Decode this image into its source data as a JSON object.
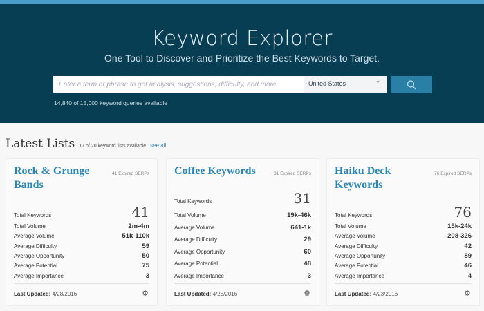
{
  "header": {
    "title": "Keyword Explorer",
    "subtitle": "One Tool to Discover and Prioritize the Best Keywords to Target.",
    "search_placeholder": "Enter a term or phrase to get analysis, suggestions, difficulty, and more",
    "country": "United States",
    "queries_available": "14,840 of 15,000 keyword queries available"
  },
  "latest": {
    "title": "Latest Lists",
    "count": "17 of 20 keyword lists available",
    "see_all": "see all"
  },
  "labels": [
    "Total Keywords",
    "Total Volume",
    "Average Volume",
    "Average Difficulty",
    "Average Opportunity",
    "Average Potential",
    "Average Importance"
  ],
  "last_updated_label": "Last Updated:",
  "cards": [
    {
      "title": "Rock & Grunge Bands",
      "expired": "41 Expired SERPs",
      "values": [
        "41",
        "2m-4m",
        "51k-110k",
        "59",
        "50",
        "75",
        "3"
      ],
      "updated": "4/28/2016"
    },
    {
      "title": "Coffee Keywords",
      "expired": "31 Expired SERPs",
      "values": [
        "31",
        "19k-46k",
        "641-1k",
        "29",
        "60",
        "48",
        "3"
      ],
      "updated": "4/28/2016"
    },
    {
      "title": "Haiku Deck Keywords",
      "expired": "76 Expired SERPs",
      "values": [
        "76",
        "15k-24k",
        "208-326",
        "42",
        "89",
        "46",
        "4"
      ],
      "updated": "4/23/2016"
    }
  ]
}
